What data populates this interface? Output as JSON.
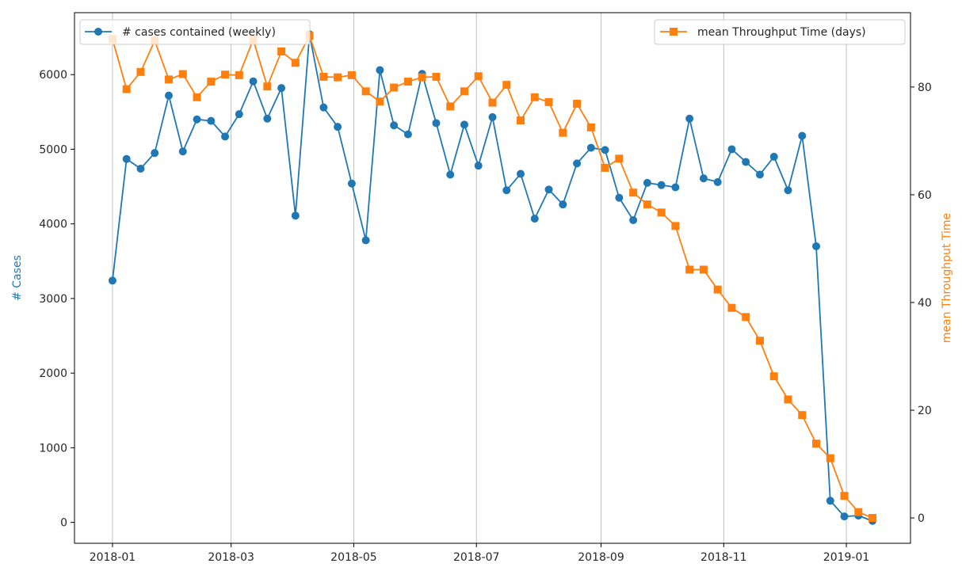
{
  "chart_data": {
    "type": "line",
    "x_dates": [
      "2018-01-01",
      "2018-01-08",
      "2018-01-15",
      "2018-01-22",
      "2018-01-29",
      "2018-02-05",
      "2018-02-12",
      "2018-02-19",
      "2018-02-26",
      "2018-03-05",
      "2018-03-12",
      "2018-03-19",
      "2018-03-26",
      "2018-04-02",
      "2018-04-09",
      "2018-04-16",
      "2018-04-23",
      "2018-04-30",
      "2018-05-07",
      "2018-05-14",
      "2018-05-21",
      "2018-05-28",
      "2018-06-04",
      "2018-06-11",
      "2018-06-18",
      "2018-06-25",
      "2018-07-02",
      "2018-07-09",
      "2018-07-16",
      "2018-07-23",
      "2018-07-30",
      "2018-08-06",
      "2018-08-13",
      "2018-08-20",
      "2018-08-27",
      "2018-09-03",
      "2018-09-10",
      "2018-09-17",
      "2018-09-24",
      "2018-10-01",
      "2018-10-08",
      "2018-10-15",
      "2018-10-22",
      "2018-10-29",
      "2018-11-05",
      "2018-11-12",
      "2018-11-19",
      "2018-11-26",
      "2018-12-03",
      "2018-12-10",
      "2018-12-17",
      "2018-12-24",
      "2018-12-31",
      "2019-01-07",
      "2019-01-14"
    ],
    "series": [
      {
        "name": "# cases contained (weekly)",
        "axis": "left",
        "color": "#1f77b4",
        "marker": "circle",
        "values": [
          3240,
          4870,
          4740,
          4950,
          5720,
          4970,
          5400,
          5380,
          5170,
          5470,
          5910,
          5410,
          5820,
          4110,
          6540,
          5560,
          5300,
          4540,
          3780,
          6060,
          5320,
          5200,
          6010,
          5350,
          4660,
          5330,
          4780,
          5430,
          4450,
          4670,
          4070,
          4460,
          4260,
          4810,
          5020,
          4990,
          4350,
          4050,
          4550,
          4520,
          4490,
          5410,
          4610,
          4560,
          5000,
          4830,
          4660,
          4900,
          4450,
          5180,
          3700,
          290,
          80,
          90,
          20
        ]
      },
      {
        "name": "mean Throughput Time (days)",
        "axis": "right",
        "color": "#ff7f0e",
        "marker": "square",
        "values": [
          88.9,
          79.6,
          82.8,
          88.6,
          81.4,
          82.4,
          78.1,
          81.0,
          82.3,
          82.2,
          88.8,
          80.1,
          86.6,
          84.5,
          89.5,
          81.9,
          81.8,
          82.2,
          79.2,
          77.3,
          79.9,
          81.0,
          81.8,
          81.9,
          76.4,
          79.2,
          82.0,
          77.1,
          80.4,
          73.8,
          78.1,
          77.2,
          71.5,
          76.9,
          72.5,
          65.0,
          66.7,
          60.4,
          58.2,
          56.7,
          54.2,
          46.1,
          46.1,
          42.4,
          39.0,
          37.3,
          32.9,
          26.3,
          22.0,
          19.1,
          13.8,
          11.1,
          4.1,
          1.1,
          0.0
        ]
      }
    ],
    "x_ticks": [
      "2018-01",
      "2018-03",
      "2018-05",
      "2018-07",
      "2018-09",
      "2018-11",
      "2019-01"
    ],
    "y_left": {
      "label": "# Cases",
      "ticks": [
        0,
        1000,
        2000,
        3000,
        4000,
        5000,
        6000
      ],
      "ylim": [
        -280,
        6830
      ]
    },
    "y_right": {
      "label": "mean Throughput Time",
      "ticks": [
        0,
        20,
        40,
        60,
        80
      ],
      "ylim": [
        -4.7,
        93.8
      ]
    },
    "grid": "vertical",
    "legend_left": {
      "placement": "top-left",
      "label": "# cases contained (weekly)"
    },
    "legend_right": {
      "placement": "top-right",
      "label": "mean Throughput Time (days)"
    },
    "title": "",
    "xlabel": ""
  }
}
